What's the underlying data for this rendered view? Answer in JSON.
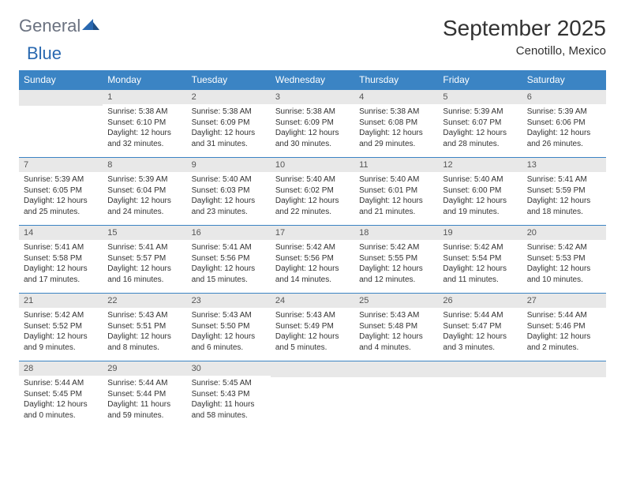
{
  "logo": {
    "general": "General",
    "blue": "Blue"
  },
  "title": "September 2025",
  "location": "Cenotillo, Mexico",
  "headers": [
    "Sunday",
    "Monday",
    "Tuesday",
    "Wednesday",
    "Thursday",
    "Friday",
    "Saturday"
  ],
  "colors": {
    "header_bg": "#3b84c4",
    "header_text": "#ffffff",
    "daynum_bg": "#e8e8e8",
    "border": "#3b84c4",
    "text": "#323232",
    "logo_gray": "#6b7280",
    "logo_blue": "#2968b0"
  },
  "weeks": [
    [
      {
        "day": ""
      },
      {
        "day": "1",
        "sunrise": "Sunrise: 5:38 AM",
        "sunset": "Sunset: 6:10 PM",
        "daylight": "Daylight: 12 hours and 32 minutes."
      },
      {
        "day": "2",
        "sunrise": "Sunrise: 5:38 AM",
        "sunset": "Sunset: 6:09 PM",
        "daylight": "Daylight: 12 hours and 31 minutes."
      },
      {
        "day": "3",
        "sunrise": "Sunrise: 5:38 AM",
        "sunset": "Sunset: 6:09 PM",
        "daylight": "Daylight: 12 hours and 30 minutes."
      },
      {
        "day": "4",
        "sunrise": "Sunrise: 5:38 AM",
        "sunset": "Sunset: 6:08 PM",
        "daylight": "Daylight: 12 hours and 29 minutes."
      },
      {
        "day": "5",
        "sunrise": "Sunrise: 5:39 AM",
        "sunset": "Sunset: 6:07 PM",
        "daylight": "Daylight: 12 hours and 28 minutes."
      },
      {
        "day": "6",
        "sunrise": "Sunrise: 5:39 AM",
        "sunset": "Sunset: 6:06 PM",
        "daylight": "Daylight: 12 hours and 26 minutes."
      }
    ],
    [
      {
        "day": "7",
        "sunrise": "Sunrise: 5:39 AM",
        "sunset": "Sunset: 6:05 PM",
        "daylight": "Daylight: 12 hours and 25 minutes."
      },
      {
        "day": "8",
        "sunrise": "Sunrise: 5:39 AM",
        "sunset": "Sunset: 6:04 PM",
        "daylight": "Daylight: 12 hours and 24 minutes."
      },
      {
        "day": "9",
        "sunrise": "Sunrise: 5:40 AM",
        "sunset": "Sunset: 6:03 PM",
        "daylight": "Daylight: 12 hours and 23 minutes."
      },
      {
        "day": "10",
        "sunrise": "Sunrise: 5:40 AM",
        "sunset": "Sunset: 6:02 PM",
        "daylight": "Daylight: 12 hours and 22 minutes."
      },
      {
        "day": "11",
        "sunrise": "Sunrise: 5:40 AM",
        "sunset": "Sunset: 6:01 PM",
        "daylight": "Daylight: 12 hours and 21 minutes."
      },
      {
        "day": "12",
        "sunrise": "Sunrise: 5:40 AM",
        "sunset": "Sunset: 6:00 PM",
        "daylight": "Daylight: 12 hours and 19 minutes."
      },
      {
        "day": "13",
        "sunrise": "Sunrise: 5:41 AM",
        "sunset": "Sunset: 5:59 PM",
        "daylight": "Daylight: 12 hours and 18 minutes."
      }
    ],
    [
      {
        "day": "14",
        "sunrise": "Sunrise: 5:41 AM",
        "sunset": "Sunset: 5:58 PM",
        "daylight": "Daylight: 12 hours and 17 minutes."
      },
      {
        "day": "15",
        "sunrise": "Sunrise: 5:41 AM",
        "sunset": "Sunset: 5:57 PM",
        "daylight": "Daylight: 12 hours and 16 minutes."
      },
      {
        "day": "16",
        "sunrise": "Sunrise: 5:41 AM",
        "sunset": "Sunset: 5:56 PM",
        "daylight": "Daylight: 12 hours and 15 minutes."
      },
      {
        "day": "17",
        "sunrise": "Sunrise: 5:42 AM",
        "sunset": "Sunset: 5:56 PM",
        "daylight": "Daylight: 12 hours and 14 minutes."
      },
      {
        "day": "18",
        "sunrise": "Sunrise: 5:42 AM",
        "sunset": "Sunset: 5:55 PM",
        "daylight": "Daylight: 12 hours and 12 minutes."
      },
      {
        "day": "19",
        "sunrise": "Sunrise: 5:42 AM",
        "sunset": "Sunset: 5:54 PM",
        "daylight": "Daylight: 12 hours and 11 minutes."
      },
      {
        "day": "20",
        "sunrise": "Sunrise: 5:42 AM",
        "sunset": "Sunset: 5:53 PM",
        "daylight": "Daylight: 12 hours and 10 minutes."
      }
    ],
    [
      {
        "day": "21",
        "sunrise": "Sunrise: 5:42 AM",
        "sunset": "Sunset: 5:52 PM",
        "daylight": "Daylight: 12 hours and 9 minutes."
      },
      {
        "day": "22",
        "sunrise": "Sunrise: 5:43 AM",
        "sunset": "Sunset: 5:51 PM",
        "daylight": "Daylight: 12 hours and 8 minutes."
      },
      {
        "day": "23",
        "sunrise": "Sunrise: 5:43 AM",
        "sunset": "Sunset: 5:50 PM",
        "daylight": "Daylight: 12 hours and 6 minutes."
      },
      {
        "day": "24",
        "sunrise": "Sunrise: 5:43 AM",
        "sunset": "Sunset: 5:49 PM",
        "daylight": "Daylight: 12 hours and 5 minutes."
      },
      {
        "day": "25",
        "sunrise": "Sunrise: 5:43 AM",
        "sunset": "Sunset: 5:48 PM",
        "daylight": "Daylight: 12 hours and 4 minutes."
      },
      {
        "day": "26",
        "sunrise": "Sunrise: 5:44 AM",
        "sunset": "Sunset: 5:47 PM",
        "daylight": "Daylight: 12 hours and 3 minutes."
      },
      {
        "day": "27",
        "sunrise": "Sunrise: 5:44 AM",
        "sunset": "Sunset: 5:46 PM",
        "daylight": "Daylight: 12 hours and 2 minutes."
      }
    ],
    [
      {
        "day": "28",
        "sunrise": "Sunrise: 5:44 AM",
        "sunset": "Sunset: 5:45 PM",
        "daylight": "Daylight: 12 hours and 0 minutes."
      },
      {
        "day": "29",
        "sunrise": "Sunrise: 5:44 AM",
        "sunset": "Sunset: 5:44 PM",
        "daylight": "Daylight: 11 hours and 59 minutes."
      },
      {
        "day": "30",
        "sunrise": "Sunrise: 5:45 AM",
        "sunset": "Sunset: 5:43 PM",
        "daylight": "Daylight: 11 hours and 58 minutes."
      },
      {
        "day": ""
      },
      {
        "day": ""
      },
      {
        "day": ""
      },
      {
        "day": ""
      }
    ]
  ]
}
